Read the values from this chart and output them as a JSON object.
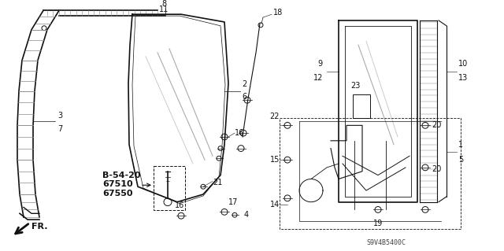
{
  "bg_color": "#ffffff",
  "fig_width": 6.4,
  "fig_height": 3.19,
  "dpi": 100,
  "watermark": "S9V4B5400C",
  "bold_labels": [
    "B-54-20",
    "67510",
    "67550"
  ],
  "gray": "#444444",
  "dgray": "#111111",
  "lgray": "#888888"
}
